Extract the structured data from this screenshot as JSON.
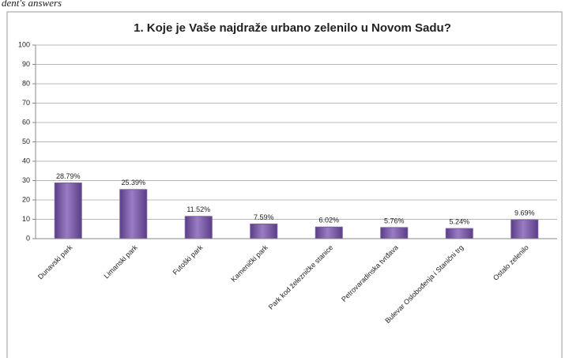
{
  "caption": "dent's answers",
  "chart_data": {
    "type": "bar",
    "title": "1. Koje je Vaše najdraže urbano zelenilo u Novom Sadu?",
    "categories": [
      "Dunavski park",
      "Limanski park",
      "Futoški park",
      "Kamenički park",
      "Park kod železničke stanice",
      "Petrovaradinska tvrđava",
      "Bulevar Oslobođenja i Stanični trg",
      "Ostalo zelenilo"
    ],
    "values": [
      28.79,
      25.39,
      11.52,
      7.59,
      6.02,
      5.76,
      5.24,
      9.69
    ],
    "value_labels": [
      "28.79%",
      "25.39%",
      "11.52%",
      "7.59%",
      "6.02%",
      "5.76%",
      "5.24%",
      "9.69%"
    ],
    "color": "#7b5ba8",
    "ylim": [
      0,
      100
    ],
    "yticks": [
      0,
      10,
      20,
      30,
      40,
      50,
      60,
      70,
      80,
      90,
      100
    ],
    "grid": true
  }
}
